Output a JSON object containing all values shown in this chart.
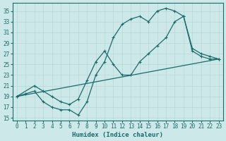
{
  "xlabel": "Humidex (Indice chaleur)",
  "bg_color": "#cce8e8",
  "line_color": "#1a6b6b",
  "grid_color": "#b8d8d8",
  "xlim": [
    -0.5,
    23.5
  ],
  "ylim": [
    14.5,
    36.5
  ],
  "xticks": [
    0,
    1,
    2,
    3,
    4,
    5,
    6,
    7,
    8,
    9,
    10,
    11,
    12,
    13,
    14,
    15,
    16,
    17,
    18,
    19,
    20,
    21,
    22,
    23
  ],
  "yticks": [
    15,
    17,
    19,
    21,
    23,
    25,
    27,
    29,
    31,
    33,
    35
  ],
  "line1_x": [
    0,
    1,
    2,
    3,
    4,
    5,
    6,
    7,
    8,
    9,
    10,
    11,
    12,
    13,
    14,
    15,
    16,
    17,
    18,
    19,
    20,
    21,
    22,
    23
  ],
  "line1_y": [
    19,
    19.5,
    20,
    18,
    17,
    16.5,
    16.5,
    15.5,
    18,
    23,
    25.5,
    30,
    32.5,
    33.5,
    34,
    33,
    35,
    35.5,
    35,
    34,
    27.5,
    26.5,
    26,
    26
  ],
  "line2_x": [
    0,
    2,
    3,
    4,
    5,
    6,
    7,
    8,
    9,
    10,
    11,
    12,
    13,
    14,
    15,
    16,
    17,
    18,
    19,
    20,
    21,
    22,
    23
  ],
  "line2_y": [
    19,
    21,
    20,
    19,
    18,
    17.5,
    18.5,
    22,
    25.5,
    27.5,
    25,
    23,
    23,
    25.5,
    27,
    28.5,
    30,
    33,
    34,
    28,
    27,
    26.5,
    26
  ],
  "line3_x": [
    0,
    23
  ],
  "line3_y": [
    19,
    26
  ]
}
